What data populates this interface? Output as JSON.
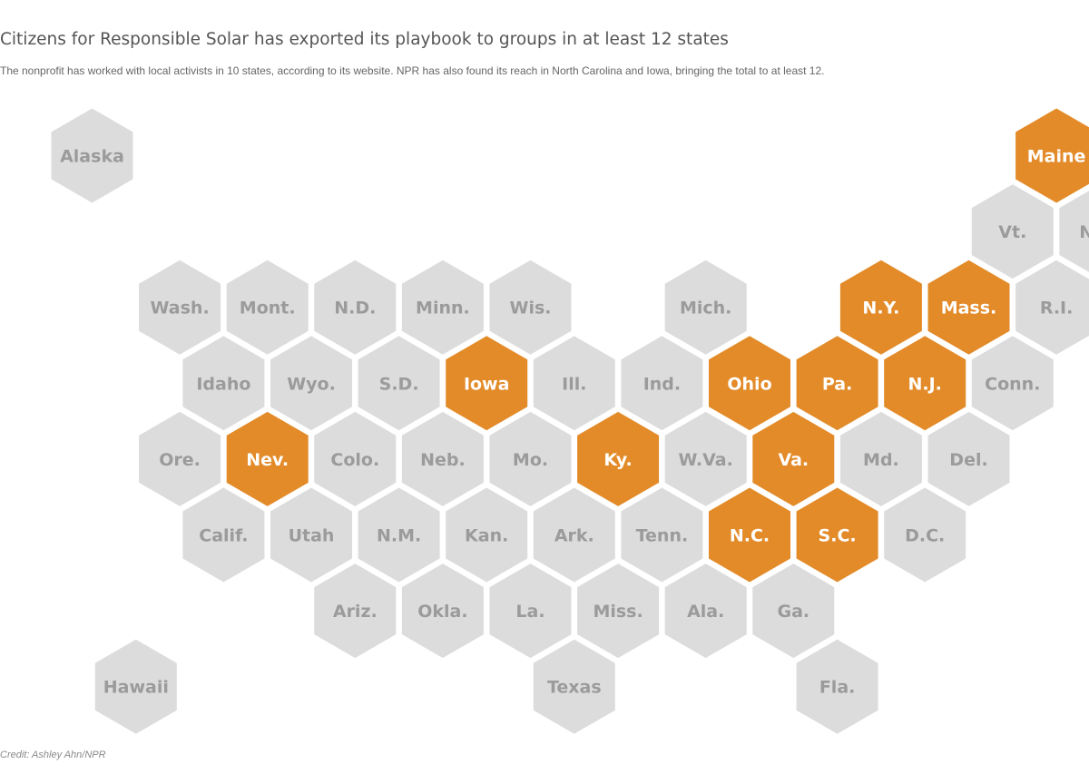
{
  "title": "Citizens for Responsible Solar has exported its playbook to groups in at least 12 states",
  "subtitle": "The nonprofit has worked with local activists in 10 states, according to its website. NPR has also found its reach in North Carolina and Iowa, bringing the total to at least 12.",
  "credit": "Credit: Ashley Ahn/NPR",
  "colors": {
    "highlight_fill": "#e38b29",
    "highlight_text": "#ffffff",
    "default_fill": "#dcdcdc",
    "default_text": "#9b9b9b"
  },
  "states": [
    {
      "abbr": "AK",
      "label": "Alaska",
      "row": 0,
      "col": 0,
      "highlighted": false
    },
    {
      "abbr": "ME",
      "label": "Maine",
      "row": 0,
      "col": 11,
      "highlighted": true
    },
    {
      "abbr": "VT",
      "label": "Vt.",
      "row": 1,
      "col": 10,
      "highlighted": false
    },
    {
      "abbr": "NH",
      "label": "N.H.",
      "row": 1,
      "col": 11,
      "highlighted": false
    },
    {
      "abbr": "WA",
      "label": "Wash.",
      "row": 2,
      "col": 1,
      "highlighted": false
    },
    {
      "abbr": "MT",
      "label": "Mont.",
      "row": 2,
      "col": 2,
      "highlighted": false
    },
    {
      "abbr": "ND",
      "label": "N.D.",
      "row": 2,
      "col": 3,
      "highlighted": false
    },
    {
      "abbr": "MN",
      "label": "Minn.",
      "row": 2,
      "col": 4,
      "highlighted": false
    },
    {
      "abbr": "WI",
      "label": "Wis.",
      "row": 2,
      "col": 5,
      "highlighted": false
    },
    {
      "abbr": "MI",
      "label": "Mich.",
      "row": 2,
      "col": 7,
      "highlighted": false
    },
    {
      "abbr": "NY",
      "label": "N.Y.",
      "row": 2,
      "col": 9,
      "highlighted": true
    },
    {
      "abbr": "MA",
      "label": "Mass.",
      "row": 2,
      "col": 10,
      "highlighted": true
    },
    {
      "abbr": "RI",
      "label": "R.I.",
      "row": 2,
      "col": 11,
      "highlighted": false
    },
    {
      "abbr": "ID",
      "label": "Idaho",
      "row": 3,
      "col": 1,
      "highlighted": false
    },
    {
      "abbr": "WY",
      "label": "Wyo.",
      "row": 3,
      "col": 2,
      "highlighted": false
    },
    {
      "abbr": "SD",
      "label": "S.D.",
      "row": 3,
      "col": 3,
      "highlighted": false
    },
    {
      "abbr": "IA",
      "label": "Iowa",
      "row": 3,
      "col": 4,
      "highlighted": true
    },
    {
      "abbr": "IL",
      "label": "Ill.",
      "row": 3,
      "col": 5,
      "highlighted": false
    },
    {
      "abbr": "IN",
      "label": "Ind.",
      "row": 3,
      "col": 6,
      "highlighted": false
    },
    {
      "abbr": "OH",
      "label": "Ohio",
      "row": 3,
      "col": 7,
      "highlighted": true
    },
    {
      "abbr": "PA",
      "label": "Pa.",
      "row": 3,
      "col": 8,
      "highlighted": true
    },
    {
      "abbr": "NJ",
      "label": "N.J.",
      "row": 3,
      "col": 9,
      "highlighted": true
    },
    {
      "abbr": "CT",
      "label": "Conn.",
      "row": 3,
      "col": 10,
      "highlighted": false
    },
    {
      "abbr": "OR",
      "label": "Ore.",
      "row": 4,
      "col": 1,
      "highlighted": false
    },
    {
      "abbr": "NV",
      "label": "Nev.",
      "row": 4,
      "col": 2,
      "highlighted": true
    },
    {
      "abbr": "CO",
      "label": "Colo.",
      "row": 4,
      "col": 3,
      "highlighted": false
    },
    {
      "abbr": "NE",
      "label": "Neb.",
      "row": 4,
      "col": 4,
      "highlighted": false
    },
    {
      "abbr": "MO",
      "label": "Mo.",
      "row": 4,
      "col": 5,
      "highlighted": false
    },
    {
      "abbr": "KY",
      "label": "Ky.",
      "row": 4,
      "col": 6,
      "highlighted": true
    },
    {
      "abbr": "WV",
      "label": "W.Va.",
      "row": 4,
      "col": 7,
      "highlighted": false
    },
    {
      "abbr": "VA",
      "label": "Va.",
      "row": 4,
      "col": 8,
      "highlighted": true
    },
    {
      "abbr": "MD",
      "label": "Md.",
      "row": 4,
      "col": 9,
      "highlighted": false
    },
    {
      "abbr": "DE",
      "label": "Del.",
      "row": 4,
      "col": 10,
      "highlighted": false
    },
    {
      "abbr": "CA",
      "label": "Calif.",
      "row": 5,
      "col": 1,
      "highlighted": false
    },
    {
      "abbr": "UT",
      "label": "Utah",
      "row": 5,
      "col": 2,
      "highlighted": false
    },
    {
      "abbr": "NM",
      "label": "N.M.",
      "row": 5,
      "col": 3,
      "highlighted": false
    },
    {
      "abbr": "KS",
      "label": "Kan.",
      "row": 5,
      "col": 4,
      "highlighted": false
    },
    {
      "abbr": "AR",
      "label": "Ark.",
      "row": 5,
      "col": 5,
      "highlighted": false
    },
    {
      "abbr": "TN",
      "label": "Tenn.",
      "row": 5,
      "col": 6,
      "highlighted": false
    },
    {
      "abbr": "NC",
      "label": "N.C.",
      "row": 5,
      "col": 7,
      "highlighted": true
    },
    {
      "abbr": "SC",
      "label": "S.C.",
      "row": 5,
      "col": 8,
      "highlighted": true
    },
    {
      "abbr": "DC",
      "label": "D.C.",
      "row": 5,
      "col": 9,
      "highlighted": false
    },
    {
      "abbr": "AZ",
      "label": "Ariz.",
      "row": 6,
      "col": 3,
      "highlighted": false
    },
    {
      "abbr": "OK",
      "label": "Okla.",
      "row": 6,
      "col": 4,
      "highlighted": false
    },
    {
      "abbr": "LA",
      "label": "La.",
      "row": 6,
      "col": 5,
      "highlighted": false
    },
    {
      "abbr": "MS",
      "label": "Miss.",
      "row": 6,
      "col": 6,
      "highlighted": false
    },
    {
      "abbr": "AL",
      "label": "Ala.",
      "row": 6,
      "col": 7,
      "highlighted": false
    },
    {
      "abbr": "GA",
      "label": "Ga.",
      "row": 6,
      "col": 8,
      "highlighted": false
    },
    {
      "abbr": "HI",
      "label": "Hawaii",
      "row": 7,
      "col": 0,
      "highlighted": false
    },
    {
      "abbr": "TX",
      "label": "Texas",
      "row": 7,
      "col": 5,
      "highlighted": false
    },
    {
      "abbr": "FL",
      "label": "Fla.",
      "row": 7,
      "col": 8,
      "highlighted": false
    }
  ]
}
